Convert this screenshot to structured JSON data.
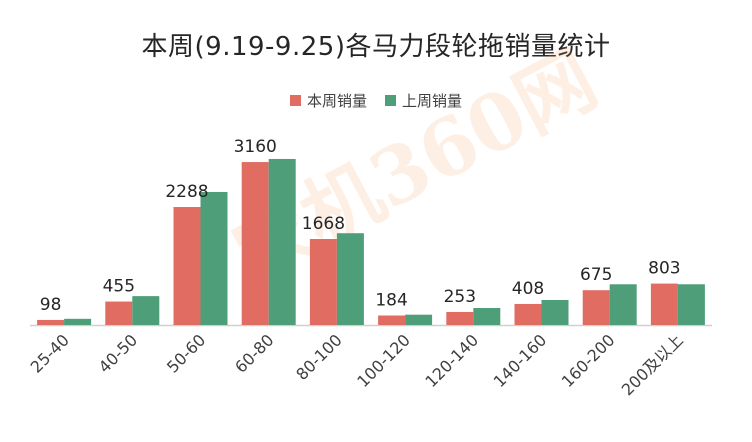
{
  "chart_data": {
    "type": "bar",
    "title": "本周(9.19-9.25)各马力段轮拖销量统计",
    "categories": [
      "25-40",
      "40-50",
      "50-60",
      "60-80",
      "80-100",
      "100-120",
      "120-140",
      "140-160",
      "160-200",
      "200及以上"
    ],
    "series": [
      {
        "name": "本周销量",
        "color": "#e06c62",
        "values": [
          98,
          455,
          2288,
          3160,
          1668,
          184,
          253,
          408,
          675,
          803
        ]
      },
      {
        "name": "上周销量",
        "color": "#4f9e7a",
        "values": [
          120,
          560,
          2580,
          3220,
          1780,
          200,
          330,
          485,
          790,
          790
        ]
      }
    ],
    "data_labels": [
      "98",
      "455",
      "2288",
      "3160",
      "1668",
      "184",
      "253",
      "408",
      "675",
      "803"
    ],
    "ylim": [
      0,
      3200
    ],
    "grid": false,
    "legend_position": "top"
  },
  "watermark": "农机360网"
}
